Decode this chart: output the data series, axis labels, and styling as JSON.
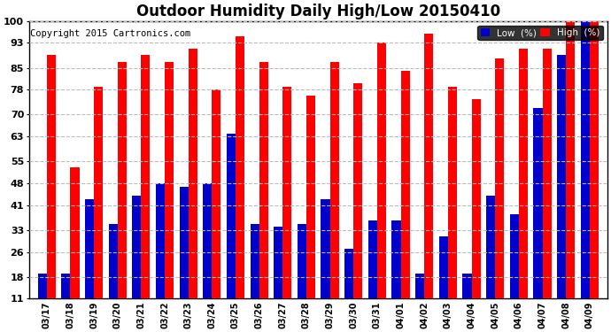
{
  "title": "Outdoor Humidity Daily High/Low 20150410",
  "copyright": "Copyright 2015 Cartronics.com",
  "dates": [
    "03/17",
    "03/18",
    "03/19",
    "03/20",
    "03/21",
    "03/22",
    "03/23",
    "03/24",
    "03/25",
    "03/26",
    "03/27",
    "03/28",
    "03/29",
    "03/30",
    "03/31",
    "04/01",
    "04/02",
    "04/03",
    "04/04",
    "04/05",
    "04/06",
    "04/07",
    "04/08",
    "04/09"
  ],
  "high": [
    89,
    53,
    79,
    87,
    89,
    87,
    91,
    78,
    95,
    87,
    79,
    76,
    87,
    80,
    93,
    84,
    96,
    79,
    75,
    88,
    91,
    91,
    100,
    100
  ],
  "low": [
    19,
    19,
    43,
    35,
    44,
    48,
    47,
    48,
    64,
    35,
    34,
    35,
    43,
    27,
    36,
    36,
    19,
    31,
    19,
    44,
    38,
    72,
    89,
    100
  ],
  "ylim_min": 11,
  "ylim_max": 100,
  "yticks": [
    11,
    18,
    26,
    33,
    41,
    48,
    55,
    63,
    70,
    78,
    85,
    93,
    100
  ],
  "bar_width": 0.38,
  "high_color": "#ff0000",
  "low_color": "#0000cc",
  "bg_color": "#ffffff",
  "grid_color": "#bbbbbb",
  "title_fontsize": 12,
  "copyright_fontsize": 7.5,
  "legend_low_label": "Low  (%)",
  "legend_high_label": "High  (%)"
}
